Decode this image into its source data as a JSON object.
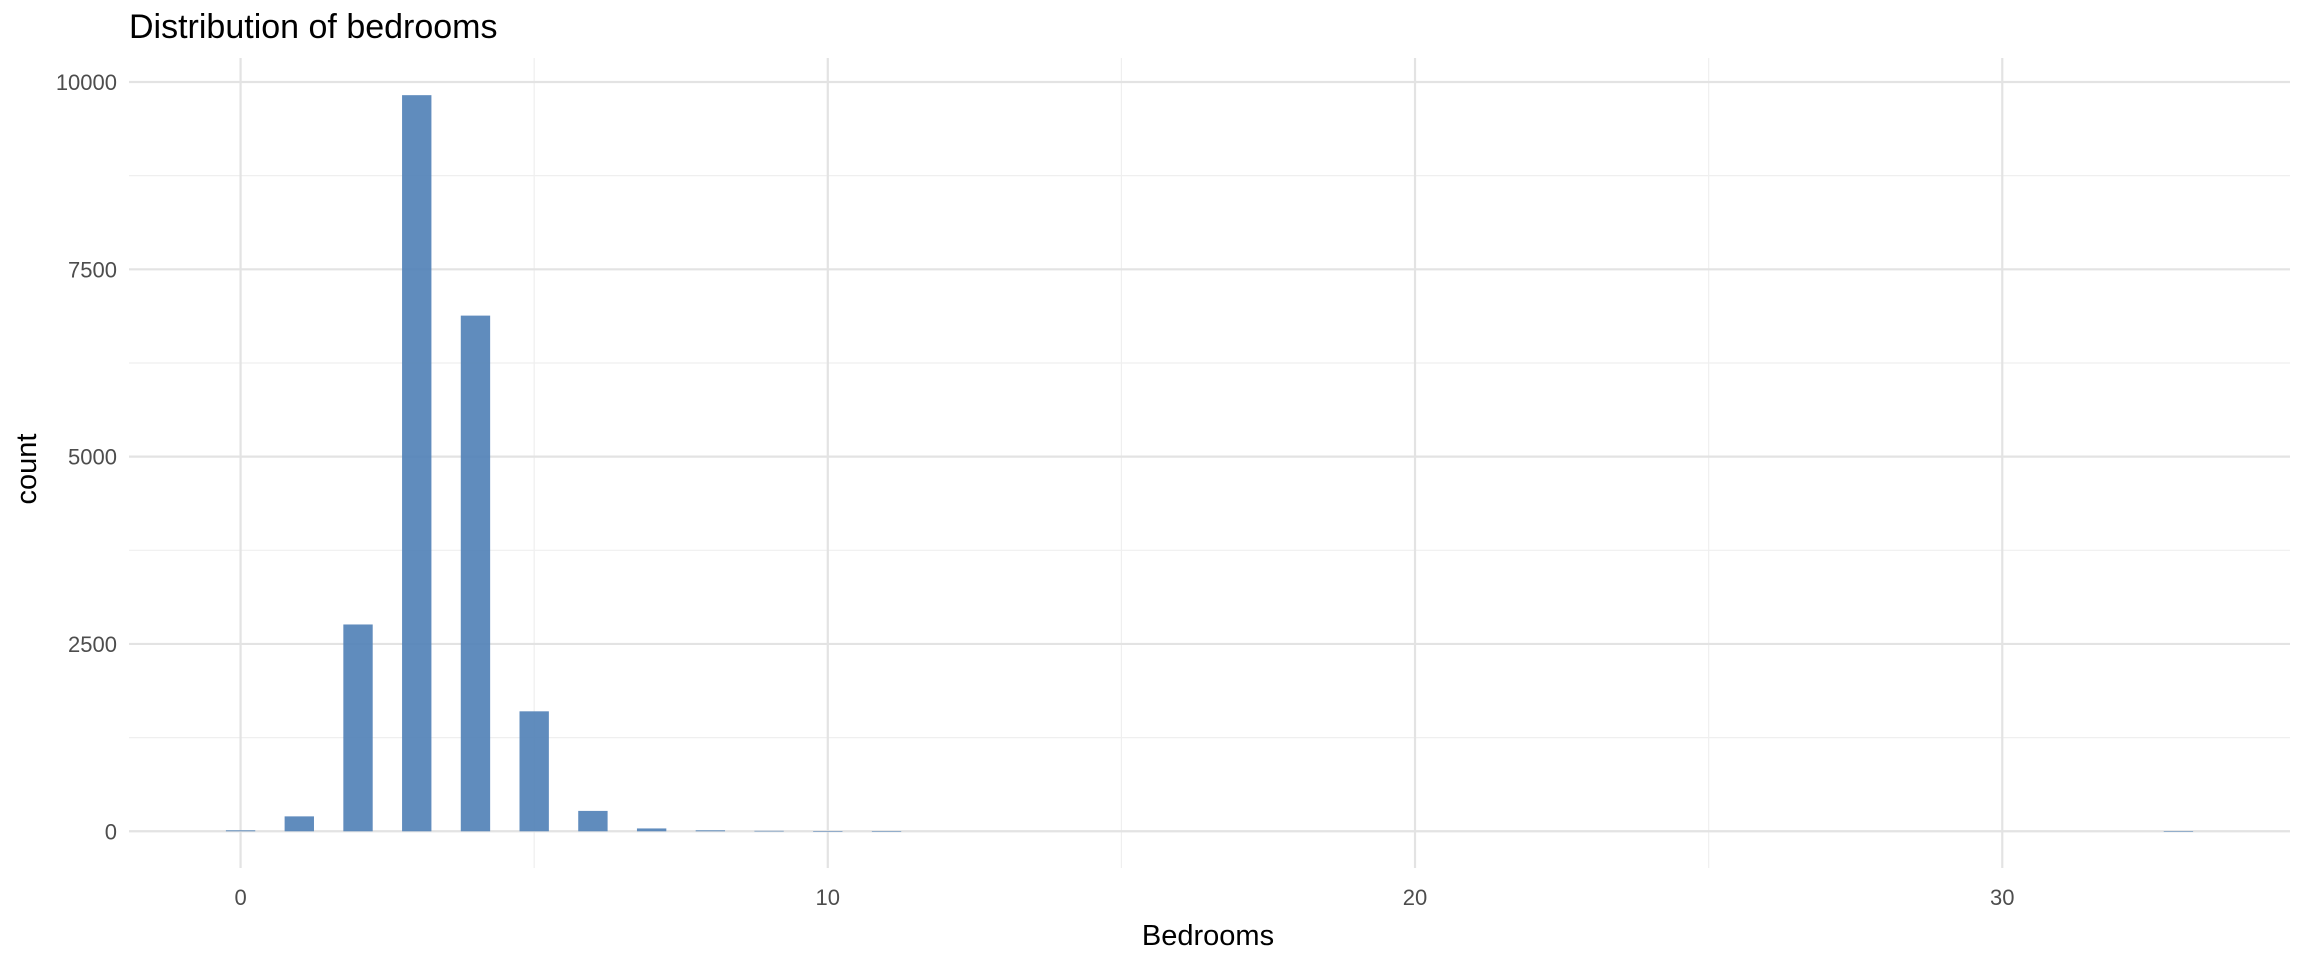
{
  "chart_data": {
    "type": "bar",
    "title": "Distribution of bedrooms",
    "xlabel": "Bedrooms",
    "ylabel": "count",
    "x": [
      0,
      1,
      2,
      3,
      4,
      5,
      6,
      7,
      8,
      9,
      10,
      11,
      33
    ],
    "values": [
      13,
      199,
      2760,
      9824,
      6882,
      1601,
      272,
      38,
      13,
      6,
      3,
      1,
      1
    ],
    "xlim": [
      -1.9,
      34.9
    ],
    "ylim": [
      -490,
      10320
    ],
    "x_ticks": [
      0,
      10,
      20,
      30
    ],
    "x_tick_labels": [
      "0",
      "10",
      "20",
      "30"
    ],
    "y_ticks": [
      0,
      2500,
      5000,
      7500,
      10000
    ],
    "y_tick_labels": [
      "0",
      "2500",
      "5000",
      "7500",
      "10000"
    ],
    "bar_width": 0.5,
    "grid": true,
    "legend": "none",
    "colors": {
      "bar": "#4f7fb6",
      "grid_major": "#e3e3e3",
      "grid_minor": "#efefef"
    }
  }
}
